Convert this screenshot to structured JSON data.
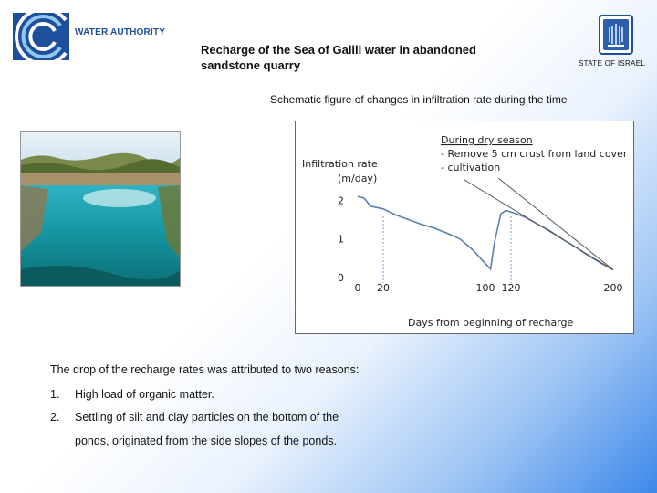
{
  "header": {
    "logo_text": "WATER AUTHORITY",
    "title_line1": "Recharge of  the Sea of Galili water in abandoned",
    "title_line2": "sandstone quarry",
    "state_label": "STATE OF ISRAEL"
  },
  "subtitle": "Schematic figure of changes in infiltration rate during the time",
  "chart_data": {
    "type": "line",
    "ylabel_line1": "Infiltration rate",
    "ylabel_line2": "(m/day)",
    "xlabel": "Days from beginning of recharge",
    "annotation_title": "During dry season",
    "annotation_line1": "- Remove 5 cm crust  from land cover",
    "annotation_line2": "- cultivation",
    "x_ticks": [
      "0",
      "20",
      "100",
      "120",
      "200"
    ],
    "y_ticks": [
      "0",
      "1",
      "2"
    ],
    "xlim": [
      0,
      200
    ],
    "ylim": [
      0,
      2.2
    ],
    "dashed_markers_x": [
      20,
      120
    ],
    "series": [
      {
        "color": "#5b7fae",
        "x": [
          0,
          5,
          10,
          20,
          30,
          40,
          50,
          60,
          70,
          80,
          90,
          100,
          104,
          107,
          112,
          116,
          120,
          130,
          140,
          150,
          160,
          170,
          180,
          190,
          200
        ],
        "y": [
          2.1,
          2.06,
          1.85,
          1.78,
          1.62,
          1.5,
          1.38,
          1.28,
          1.15,
          1.0,
          0.72,
          0.36,
          0.22,
          0.9,
          1.65,
          1.74,
          1.7,
          1.58,
          1.4,
          1.22,
          1.0,
          0.8,
          0.58,
          0.38,
          0.2
        ]
      }
    ]
  },
  "text": {
    "intro": "The drop of the recharge rates was attributed to two reasons:",
    "item1_num": "1.",
    "item1": "High load of organic matter.",
    "item2_num": "2.",
    "item2_line1": "Settling of silt and clay particles on the bottom of the",
    "item2_line2": "ponds, originated from the side slopes of the ponds."
  }
}
